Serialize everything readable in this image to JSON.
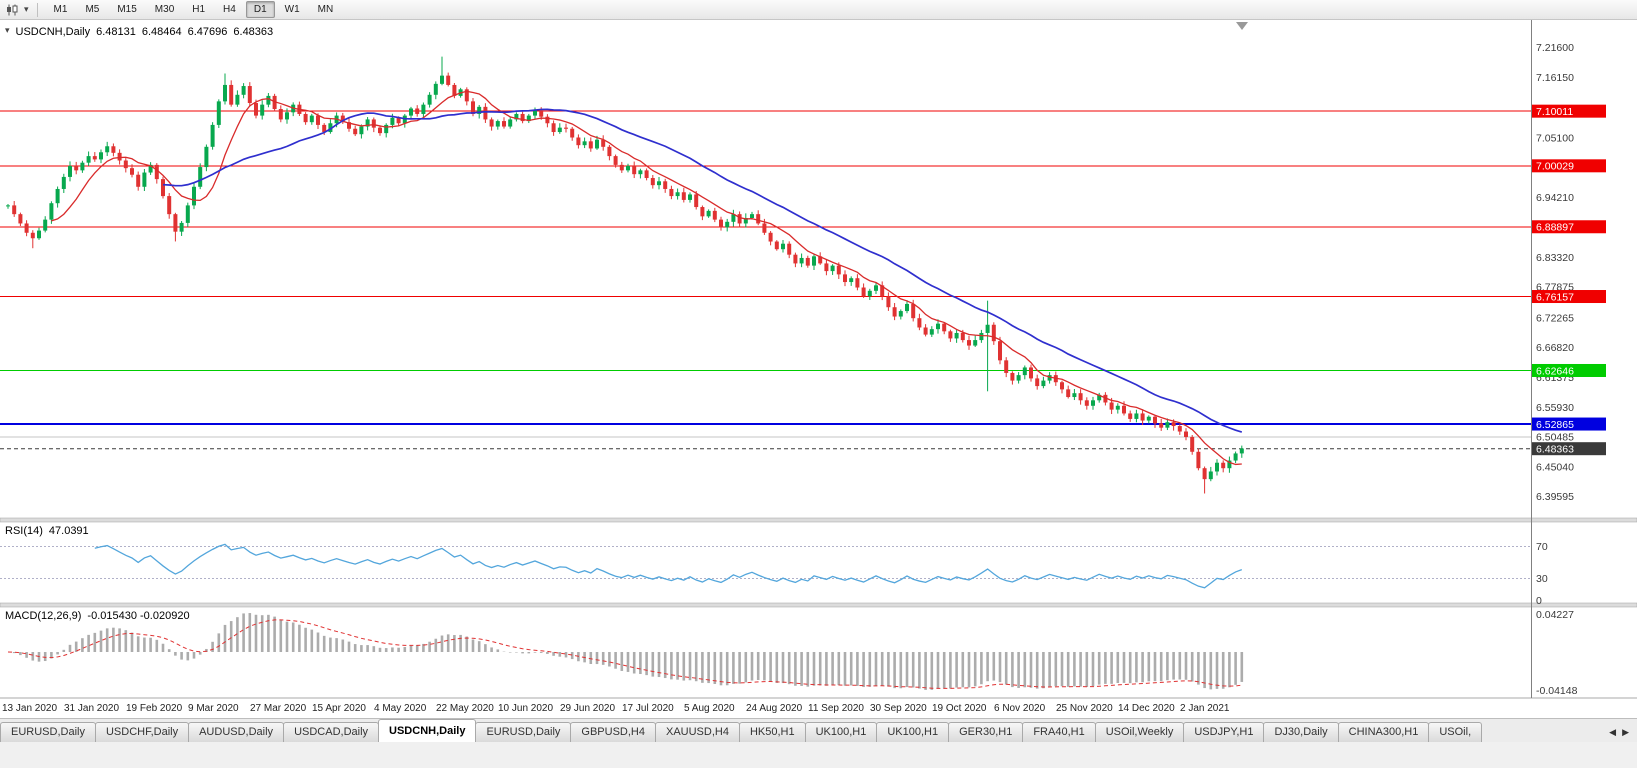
{
  "toolbar": {
    "timeframes": [
      "M1",
      "M5",
      "M15",
      "M30",
      "H1",
      "H4",
      "D1",
      "W1",
      "MN"
    ],
    "active_timeframe": "D1"
  },
  "icons": {
    "caret": "▾",
    "tab_left": "◀",
    "tab_right": "▶"
  },
  "chart": {
    "symbol_line": {
      "symbol": "USDCNH,Daily",
      "open": "6.48131",
      "high": "6.48464",
      "low": "6.47696",
      "close": "6.48363"
    }
  },
  "chart_data": {
    "type": "candlestick",
    "symbol": "USDCNH",
    "timeframe": "Daily",
    "x_labels": [
      "13 Jan 2020",
      "31 Jan 2020",
      "19 Feb 2020",
      "9 Mar 2020",
      "27 Mar 2020",
      "15 Apr 2020",
      "4 May 2020",
      "22 May 2020",
      "10 Jun 2020",
      "29 Jun 2020",
      "17 Jul 2020",
      "5 Aug 2020",
      "24 Aug 2020",
      "11 Sep 2020",
      "30 Sep 2020",
      "19 Oct 2020",
      "6 Nov 2020",
      "25 Nov 2020",
      "14 Dec 2020",
      "2 Jan 2021"
    ],
    "closes": [
      6.928,
      6.912,
      6.895,
      6.878,
      6.868,
      6.882,
      6.902,
      6.932,
      6.958,
      6.98,
      7.0,
      6.992,
      7.006,
      7.018,
      7.012,
      7.025,
      7.036,
      7.024,
      7.01,
      6.996,
      6.984,
      6.962,
      6.988,
      7.002,
      6.976,
      6.945,
      6.912,
      6.88,
      6.896,
      6.928,
      6.962,
      6.998,
      7.035,
      7.075,
      7.118,
      7.148,
      7.112,
      7.13,
      7.146,
      7.115,
      7.092,
      7.112,
      7.128,
      7.104,
      7.085,
      7.098,
      7.112,
      7.095,
      7.08,
      7.092,
      7.075,
      7.062,
      7.078,
      7.092,
      7.08,
      7.068,
      7.058,
      7.072,
      7.085,
      7.07,
      7.06,
      7.075,
      7.088,
      7.078,
      7.092,
      7.105,
      7.095,
      7.112,
      7.13,
      7.15,
      7.165,
      7.148,
      7.128,
      7.14,
      7.118,
      7.095,
      7.108,
      7.085,
      7.072,
      7.082,
      7.072,
      7.085,
      7.095,
      7.082,
      7.092,
      7.102,
      7.09,
      7.078,
      7.062,
      7.07,
      7.068,
      7.052,
      7.038,
      7.045,
      7.032,
      7.048,
      7.035,
      7.018,
      7.002,
      6.992,
      7.0,
      6.985,
      6.992,
      6.978,
      6.965,
      6.972,
      6.958,
      6.945,
      6.952,
      6.938,
      6.948,
      6.925,
      6.908,
      6.918,
      6.902,
      6.888,
      6.898,
      6.912,
      6.895,
      6.905,
      6.912,
      6.895,
      6.878,
      6.862,
      6.848,
      6.858,
      6.838,
      6.822,
      6.832,
      6.818,
      6.835,
      6.822,
      6.808,
      6.818,
      6.802,
      6.788,
      6.795,
      6.778,
      6.762,
      6.772,
      6.782,
      6.762,
      6.742,
      6.725,
      6.735,
      6.748,
      6.722,
      6.705,
      6.692,
      6.702,
      6.712,
      6.698,
      6.685,
      6.695,
      6.682,
      6.672,
      6.682,
      6.695,
      6.71,
      6.68,
      6.645,
      6.622,
      6.608,
      6.618,
      6.632,
      6.612,
      6.598,
      6.608,
      6.618,
      6.605,
      6.592,
      6.578,
      6.585,
      6.572,
      6.562,
      6.572,
      6.582,
      6.568,
      6.555,
      6.562,
      6.548,
      6.538,
      6.548,
      6.535,
      6.542,
      6.53,
      6.522,
      6.532,
      6.525,
      6.515,
      6.505,
      6.478,
      6.448,
      6.428,
      6.442,
      6.458,
      6.448,
      6.462,
      6.475,
      6.484
    ],
    "special_wicks": {
      "4": [
        0,
        0.01
      ],
      "27": [
        0,
        0.012
      ],
      "35": [
        0.015,
        0
      ],
      "70": [
        0.03,
        0
      ],
      "158": [
        0.04,
        0.1
      ],
      "193": [
        0,
        0.022
      ]
    },
    "price_axis_ticks": [
      "7.21600",
      "7.16150",
      "7.05100",
      "6.94210",
      "6.83320",
      "6.77875",
      "6.72265",
      "6.66820",
      "6.61375",
      "6.55930",
      "6.50485",
      "6.45040",
      "6.39595"
    ],
    "levels": [
      {
        "price": 7.10011,
        "label": "7.10011",
        "color": "#F00000",
        "width": 1,
        "badge": true
      },
      {
        "price": 7.00029,
        "label": "7.00029",
        "color": "#F00000",
        "width": 1,
        "badge": true
      },
      {
        "price": 6.88897,
        "label": "6.88897",
        "color": "#F00000",
        "width": 1,
        "badge": true
      },
      {
        "price": 6.76157,
        "label": "6.76157",
        "color": "#F00000",
        "width": 1,
        "badge": true
      },
      {
        "price": 6.62646,
        "label": "6.62646",
        "color": "#00CC00",
        "width": 1,
        "badge": true
      },
      {
        "price": 6.52865,
        "label": "6.52865",
        "color": "#0000E0",
        "width": 2,
        "badge": true
      },
      {
        "price": 6.50485,
        "label": "6.50485",
        "color": "#C4C4C4",
        "width": 1,
        "badge": false
      }
    ],
    "current_price": {
      "price": 6.48363,
      "label": "6.48363",
      "color": "#3a3a3a"
    },
    "colors": {
      "up": "#08A84E",
      "down": "#E03232",
      "ma_fast": "#D92B2B",
      "ma_slow": "#2F2FCE",
      "rsi": "#53A6DC",
      "macd_hist": "#ACACAC",
      "macd_signal": "#E03232"
    },
    "indicators": {
      "rsi": {
        "label": "RSI(14)",
        "value": "47.0391",
        "levels": [
          70,
          30
        ],
        "axis": [
          "70",
          "30",
          "0"
        ]
      },
      "macd": {
        "label": "MACD(12,26,9)",
        "values": "-0.015430 -0.020920",
        "axis_top": "0.04227",
        "axis_bottom": "-0.04148"
      }
    }
  },
  "tabs": {
    "items": [
      {
        "label": "EURUSD,Daily",
        "active": false
      },
      {
        "label": "USDCHF,Daily",
        "active": false
      },
      {
        "label": "AUDUSD,Daily",
        "active": false
      },
      {
        "label": "USDCAD,Daily",
        "active": false
      },
      {
        "label": "USDCNH,Daily",
        "active": true
      },
      {
        "label": "EURUSD,Daily",
        "active": false
      },
      {
        "label": "GBPUSD,H4",
        "active": false
      },
      {
        "label": "XAUUSD,H4",
        "active": false
      },
      {
        "label": "HK50,H1",
        "active": false
      },
      {
        "label": "UK100,H1",
        "active": false
      },
      {
        "label": "UK100,H1",
        "active": false
      },
      {
        "label": "GER30,H1",
        "active": false
      },
      {
        "label": "FRA40,H1",
        "active": false
      },
      {
        "label": "USOil,Weekly",
        "active": false
      },
      {
        "label": "USDJPY,H1",
        "active": false
      },
      {
        "label": "DJ30,Daily",
        "active": false
      },
      {
        "label": "CHINA300,H1",
        "active": false
      },
      {
        "label": "USOil,",
        "active": false
      }
    ]
  }
}
